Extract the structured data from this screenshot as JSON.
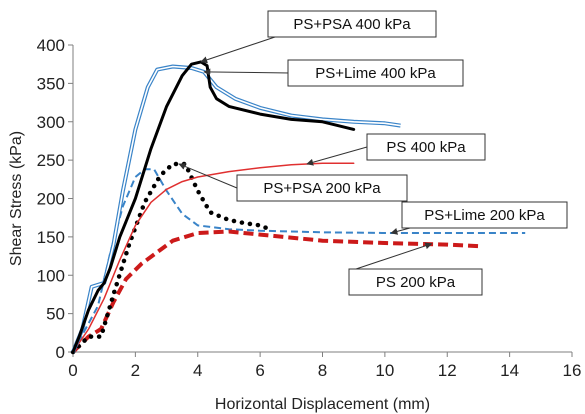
{
  "chart_data": {
    "type": "line",
    "xlabel": "Horizontal Displacement (mm)",
    "ylabel": "Shear Stress (kPa)",
    "xlim": [
      0,
      16
    ],
    "ylim": [
      0,
      400
    ],
    "x_ticks": [
      "0",
      "2",
      "4",
      "6",
      "8",
      "10",
      "12",
      "14",
      "16"
    ],
    "y_ticks": [
      "0",
      "50",
      "100",
      "150",
      "200",
      "250",
      "300",
      "350",
      "400"
    ],
    "grid": false,
    "series": [
      {
        "name": "PS+PSA 400 kPa",
        "color": "#000000",
        "style": "solid-thick",
        "points": [
          [
            0,
            0
          ],
          [
            0.2,
            20
          ],
          [
            0.5,
            55
          ],
          [
            0.8,
            80
          ],
          [
            1,
            90
          ],
          [
            1.2,
            110
          ],
          [
            1.5,
            150
          ],
          [
            2,
            200
          ],
          [
            2.5,
            265
          ],
          [
            3,
            320
          ],
          [
            3.5,
            360
          ],
          [
            3.8,
            375
          ],
          [
            4.1,
            378
          ],
          [
            4.3,
            373
          ],
          [
            4.4,
            345
          ],
          [
            4.6,
            330
          ],
          [
            5,
            320
          ],
          [
            6,
            310
          ],
          [
            7,
            303
          ],
          [
            8,
            300
          ],
          [
            9,
            290
          ]
        ]
      },
      {
        "name": "PS+Lime 400 kPa",
        "color": "#3a84c8",
        "style": "double",
        "points": [
          [
            0,
            0
          ],
          [
            0.3,
            30
          ],
          [
            0.6,
            85
          ],
          [
            1,
            90
          ],
          [
            1.3,
            140
          ],
          [
            1.6,
            210
          ],
          [
            2,
            290
          ],
          [
            2.4,
            345
          ],
          [
            2.7,
            368
          ],
          [
            3.2,
            372
          ],
          [
            3.8,
            370
          ],
          [
            4.2,
            365
          ],
          [
            4.6,
            345
          ],
          [
            5.2,
            330
          ],
          [
            6,
            318
          ],
          [
            7,
            308
          ],
          [
            8,
            303
          ],
          [
            9,
            300
          ],
          [
            10,
            298
          ],
          [
            10.5,
            295
          ]
        ]
      },
      {
        "name": "PS 400 kPa",
        "color": "#e03030",
        "style": "solid-thin",
        "points": [
          [
            0,
            0
          ],
          [
            0.5,
            30
          ],
          [
            1,
            70
          ],
          [
            1.5,
            120
          ],
          [
            2,
            165
          ],
          [
            2.5,
            195
          ],
          [
            3,
            212
          ],
          [
            3.5,
            222
          ],
          [
            4,
            228
          ],
          [
            5,
            235
          ],
          [
            6,
            240
          ],
          [
            7,
            244
          ],
          [
            8,
            246
          ],
          [
            9,
            246
          ]
        ]
      },
      {
        "name": "PS+PSA 200 kPa",
        "color": "#000000",
        "style": "dotted",
        "points": [
          [
            0,
            0
          ],
          [
            0.5,
            20
          ],
          [
            0.9,
            20
          ],
          [
            1.3,
            75
          ],
          [
            1.8,
            140
          ],
          [
            2.3,
            195
          ],
          [
            2.8,
            230
          ],
          [
            3.2,
            245
          ],
          [
            3.6,
            245
          ],
          [
            4,
            210
          ],
          [
            4.4,
            182
          ],
          [
            5,
            172
          ],
          [
            5.5,
            168
          ],
          [
            6,
            165
          ],
          [
            6.3,
            160
          ]
        ]
      },
      {
        "name": "PS+Lime 200 kPa",
        "color": "#3a84c8",
        "style": "dashed",
        "points": [
          [
            0,
            0
          ],
          [
            0.4,
            30
          ],
          [
            0.8,
            60
          ],
          [
            1.2,
            130
          ],
          [
            1.6,
            190
          ],
          [
            2,
            228
          ],
          [
            2.3,
            238
          ],
          [
            2.6,
            238
          ],
          [
            3,
            210
          ],
          [
            3.5,
            180
          ],
          [
            4,
            165
          ],
          [
            5,
            160
          ],
          [
            6,
            158
          ],
          [
            8,
            156
          ],
          [
            10,
            155
          ],
          [
            12,
            155
          ],
          [
            14.5,
            155
          ]
        ]
      },
      {
        "name": "PS 200 kPa",
        "color": "#cc1a1a",
        "style": "dashed-thick",
        "points": [
          [
            0,
            0
          ],
          [
            0.5,
            20
          ],
          [
            0.9,
            30
          ],
          [
            1.3,
            65
          ],
          [
            1.7,
            95
          ],
          [
            2.2,
            115
          ],
          [
            2.7,
            130
          ],
          [
            3.2,
            145
          ],
          [
            4,
            155
          ],
          [
            5,
            157
          ],
          [
            6,
            153
          ],
          [
            8,
            145
          ],
          [
            10,
            142
          ],
          [
            12,
            140
          ],
          [
            13,
            138
          ]
        ]
      }
    ],
    "annotations": [
      {
        "text": "PS+PSA 400 kPa",
        "target": [
          4.1,
          378
        ]
      },
      {
        "text": "PS+Lime 400 kPa",
        "target": [
          4.2,
          365
        ]
      },
      {
        "text": "PS 400 kPa",
        "target": [
          7.5,
          245
        ]
      },
      {
        "text": "PS+PSA 200 kPa",
        "target": [
          3.4,
          245
        ]
      },
      {
        "text": "PS+Lime 200 kPa",
        "target": [
          10.2,
          155
        ]
      },
      {
        "text": "PS 200 kPa",
        "target": [
          11.5,
          141
        ]
      }
    ]
  }
}
